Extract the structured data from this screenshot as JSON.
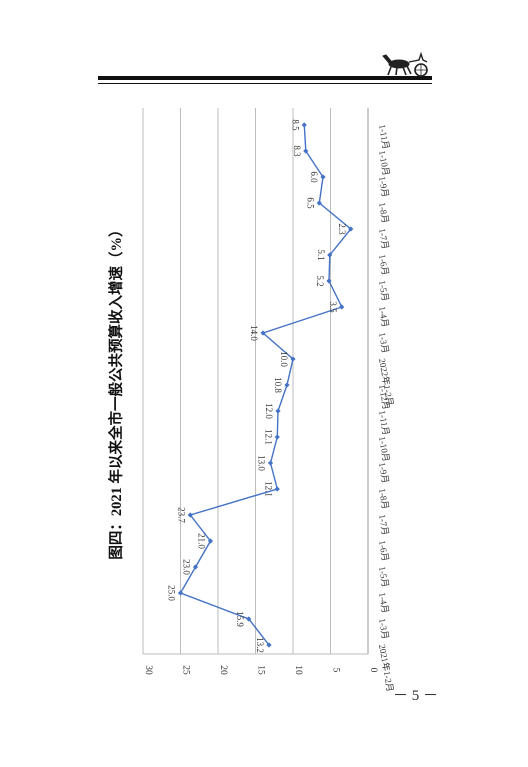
{
  "page": {
    "number": "－ 5 －"
  },
  "chart_data": {
    "type": "line",
    "title": "图四：2021 年以来全市一般公共预算收入增速（%）",
    "xlabel": "",
    "ylabel": "",
    "ylim": [
      0,
      30
    ],
    "yticks": [
      0,
      5,
      10,
      15,
      20,
      25,
      30
    ],
    "grid": true,
    "orientation": "rotated-90-clockwise",
    "categories": [
      "2021年1-2月",
      "1-3月",
      "1-4月",
      "1-5月",
      "1-6月",
      "1-7月",
      "1-8月",
      "1-9月",
      "1-10月",
      "1-11月",
      "1-12月",
      "2022年1-2月",
      "1-3月",
      "1-4月",
      "1-5月",
      "1-6月",
      "1-7月",
      "1-8月",
      "1-9月",
      "1-10月",
      "1-11月"
    ],
    "series": [
      {
        "values": [
          13.2,
          15.9,
          25.0,
          23.0,
          21.0,
          23.7,
          12.1,
          13.0,
          12.1,
          12.0,
          10.8,
          10.0,
          14.0,
          3.5,
          5.2,
          5.1,
          2.3,
          6.5,
          6.0,
          8.3,
          8.5
        ],
        "labels": [
          "13.2",
          "15.9",
          "25.0",
          "23.0",
          "21.0",
          "23.7",
          "12.1",
          "13.0",
          "12.1",
          "12.0",
          "10.8",
          "10.0",
          "14.0",
          "3.5",
          "5.2",
          "5.1",
          "2.3",
          "6.5",
          "6.0",
          "8.3",
          "8.5"
        ],
        "color": "#4472C4"
      }
    ]
  }
}
